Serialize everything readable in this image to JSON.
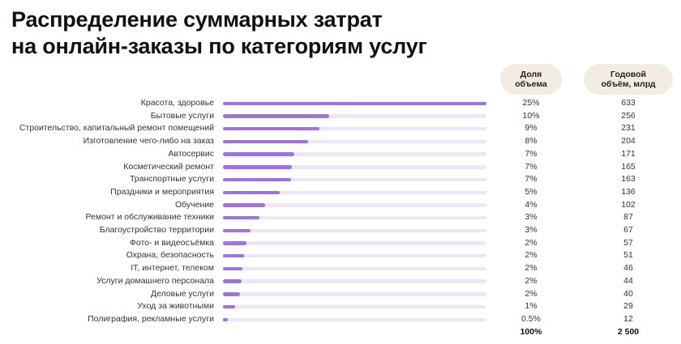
{
  "title_lines": [
    "Распределение суммарных затрат",
    "на онлайн-заказы по категориям услуг"
  ],
  "headers": {
    "share": [
      "Доля",
      "объема"
    ],
    "volume": [
      "Годовой",
      "объём, млрд"
    ]
  },
  "colors": {
    "bar": "#a070e6",
    "track": "#ede6f9",
    "header_bg": "#f4ebe3"
  },
  "chart_data": {
    "type": "bar",
    "orientation": "horizontal",
    "categories": [
      "Красота, здоровье",
      "Бытовые услуги",
      "Строительство, капитальный ремонт помещений",
      "Изготовление чего-либо на заказ",
      "Автосервис",
      "Косметический ремонт",
      "Транспортные услуги",
      "Праздники и мероприятия",
      "Обучение",
      "Ремонт и обслуживание техники",
      "Благоустройство территории",
      "Фото- и видеосъёмка",
      "Охрана, безопасность",
      "IT, интернет, телеком",
      "Услуги домашнего персонала",
      "Деловые услуги",
      "Уход за животными",
      "Полиграфия, рекламные услуги"
    ],
    "values": [
      633,
      256,
      231,
      204,
      171,
      165,
      163,
      136,
      102,
      87,
      67,
      57,
      51,
      46,
      44,
      40,
      29,
      12
    ],
    "share_labels": [
      "25%",
      "10%",
      "9%",
      "8%",
      "7%",
      "7%",
      "7%",
      "5%",
      "4%",
      "3%",
      "3%",
      "2%",
      "2%",
      "2%",
      "2%",
      "2%",
      "1%",
      "0.5%"
    ],
    "volume_labels": [
      "633",
      "256",
      "231",
      "204",
      "171",
      "165",
      "163",
      "136",
      "102",
      "87",
      "67",
      "57",
      "51",
      "46",
      "44",
      "40",
      "29",
      "12"
    ],
    "total_share": "100%",
    "total_volume": "2 500",
    "grid": false
  }
}
